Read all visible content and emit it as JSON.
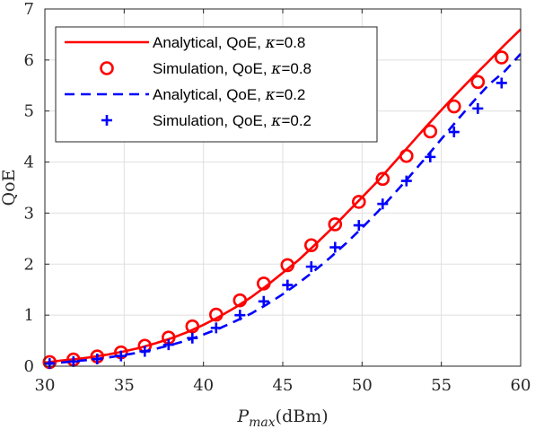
{
  "chart_data": {
    "type": "line",
    "xlabel_main": "P",
    "xlabel_sub": "max",
    "xlabel_unit": "(dBm)",
    "ylabel": "QoE",
    "xlim": [
      30,
      60
    ],
    "ylim": [
      0,
      7
    ],
    "xticks": [
      "30",
      "35",
      "40",
      "45",
      "50",
      "55",
      "60"
    ],
    "yticks": [
      "0",
      "1",
      "2",
      "3",
      "4",
      "5",
      "6",
      "7"
    ],
    "grid": true,
    "legend_position": "top-left",
    "series": [
      {
        "name_prefix": "Analytical, QoE, ",
        "kappa": "κ",
        "name_suffix": "=0.8",
        "style": "solid",
        "color": "#ff0000",
        "x": [
          30,
          31,
          32,
          33,
          34,
          35,
          36,
          37,
          38,
          39,
          40,
          41,
          42,
          43,
          44,
          45,
          46,
          47,
          48,
          49,
          50,
          51,
          52,
          53,
          54,
          55,
          56,
          57,
          58,
          59,
          60
        ],
        "y": [
          0.07,
          0.11,
          0.14,
          0.18,
          0.23,
          0.29,
          0.36,
          0.45,
          0.55,
          0.67,
          0.81,
          0.97,
          1.15,
          1.35,
          1.58,
          1.83,
          2.08,
          2.37,
          2.67,
          2.99,
          3.31,
          3.63,
          3.98,
          4.33,
          4.68,
          5.02,
          5.35,
          5.67,
          5.98,
          6.3,
          6.6
        ]
      },
      {
        "name_prefix": "Simulation, QoE, ",
        "kappa": "κ",
        "name_suffix": "=0.8",
        "style": "circle",
        "color": "#ff0000",
        "x": [
          30.3,
          31.8,
          33.3,
          34.8,
          36.3,
          37.8,
          39.3,
          40.8,
          42.3,
          43.8,
          45.3,
          46.8,
          48.3,
          49.8,
          51.3,
          52.8,
          54.3,
          55.8,
          57.3,
          58.8
        ],
        "y": [
          0.08,
          0.13,
          0.19,
          0.27,
          0.4,
          0.56,
          0.78,
          1.01,
          1.29,
          1.62,
          1.98,
          2.37,
          2.78,
          3.22,
          3.67,
          4.12,
          4.6,
          5.09,
          5.57,
          6.05
        ]
      },
      {
        "name_prefix": "Analytical, QoE, ",
        "kappa": "κ",
        "name_suffix": "=0.2",
        "style": "dashed",
        "color": "#0000ff",
        "x": [
          30,
          31,
          32,
          33,
          34,
          35,
          36,
          37,
          38,
          39,
          40,
          41,
          42,
          43,
          44,
          45,
          46,
          47,
          48,
          49,
          50,
          51,
          52,
          53,
          54,
          55,
          56,
          57,
          58,
          59,
          60
        ],
        "y": [
          0.05,
          0.07,
          0.1,
          0.13,
          0.17,
          0.22,
          0.27,
          0.34,
          0.42,
          0.51,
          0.62,
          0.74,
          0.88,
          1.03,
          1.21,
          1.41,
          1.63,
          1.87,
          2.13,
          2.41,
          2.71,
          3.03,
          3.37,
          3.72,
          4.08,
          4.45,
          4.82,
          5.18,
          5.52,
          5.78,
          6.12
        ]
      },
      {
        "name_prefix": "Simulation, QoE, ",
        "kappa": "κ",
        "name_suffix": "=0.2",
        "style": "plus",
        "color": "#0000ff",
        "x": [
          30.3,
          31.8,
          33.3,
          34.8,
          36.3,
          37.8,
          39.3,
          40.8,
          42.3,
          43.8,
          45.3,
          46.8,
          48.3,
          49.8,
          51.3,
          52.8,
          54.3,
          55.8,
          57.3,
          58.8
        ],
        "y": [
          0.05,
          0.09,
          0.14,
          0.2,
          0.29,
          0.42,
          0.55,
          0.75,
          1.0,
          1.27,
          1.59,
          1.95,
          2.33,
          2.76,
          3.18,
          3.63,
          4.1,
          4.59,
          5.05,
          5.55
        ]
      }
    ]
  }
}
